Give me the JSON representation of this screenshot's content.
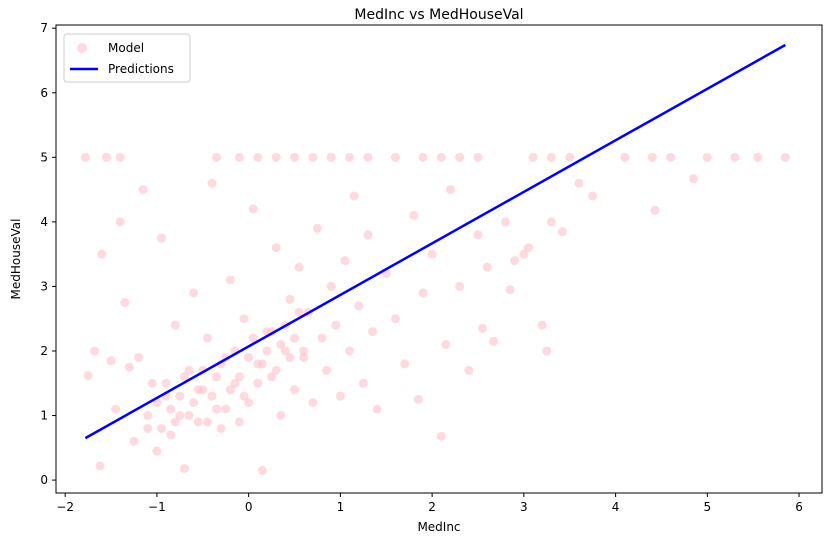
{
  "chart_data": {
    "type": "scatter",
    "title": "MedInc vs MedHouseVal",
    "xlabel": "MedInc",
    "ylabel": "MedHouseVal",
    "xlim": [
      -2.1,
      6.25
    ],
    "ylim": [
      -0.2,
      7.05
    ],
    "xticks": [
      -2,
      -1,
      0,
      1,
      2,
      3,
      4,
      5,
      6
    ],
    "yticks": [
      0,
      1,
      2,
      3,
      4,
      5,
      6,
      7
    ],
    "grid": false,
    "legend_position": "top-left",
    "colors": {
      "scatter": "#ffc0cb",
      "line": "#0000ff",
      "axis": "#000000"
    },
    "series": [
      {
        "name": "Model",
        "kind": "scatter",
        "points": [
          [
            -1.78,
            5.0
          ],
          [
            -1.55,
            5.0
          ],
          [
            -1.4,
            5.0
          ],
          [
            -0.35,
            5.0
          ],
          [
            -0.1,
            5.0
          ],
          [
            0.1,
            5.0
          ],
          [
            0.3,
            5.0
          ],
          [
            0.5,
            5.0
          ],
          [
            0.7,
            5.0
          ],
          [
            0.9,
            5.0
          ],
          [
            1.1,
            5.0
          ],
          [
            1.3,
            5.0
          ],
          [
            1.6,
            5.0
          ],
          [
            1.9,
            5.0
          ],
          [
            2.1,
            5.0
          ],
          [
            2.3,
            5.0
          ],
          [
            2.5,
            5.0
          ],
          [
            3.1,
            5.0
          ],
          [
            3.3,
            5.0
          ],
          [
            3.5,
            5.0
          ],
          [
            4.1,
            5.0
          ],
          [
            4.4,
            5.0
          ],
          [
            4.6,
            5.0
          ],
          [
            5.0,
            5.0
          ],
          [
            5.3,
            5.0
          ],
          [
            5.55,
            5.0
          ],
          [
            5.85,
            5.0
          ],
          [
            -1.75,
            1.62
          ],
          [
            -1.68,
            2.0
          ],
          [
            -1.62,
            0.22
          ],
          [
            -1.6,
            3.5
          ],
          [
            -1.5,
            1.85
          ],
          [
            -1.45,
            1.1
          ],
          [
            -1.4,
            4.0
          ],
          [
            -1.35,
            2.75
          ],
          [
            -1.3,
            1.75
          ],
          [
            -1.25,
            0.6
          ],
          [
            -1.2,
            1.9
          ],
          [
            -1.15,
            4.5
          ],
          [
            -1.1,
            0.8
          ],
          [
            -1.05,
            1.5
          ],
          [
            -1.0,
            0.45
          ],
          [
            -0.95,
            3.75
          ],
          [
            -0.9,
            1.3
          ],
          [
            -0.85,
            0.7
          ],
          [
            -0.8,
            2.4
          ],
          [
            -0.75,
            1.0
          ],
          [
            -0.7,
            0.18
          ],
          [
            -0.65,
            1.7
          ],
          [
            -0.6,
            2.9
          ],
          [
            -0.55,
            0.9
          ],
          [
            -0.5,
            1.4
          ],
          [
            -0.45,
            2.2
          ],
          [
            -0.4,
            4.6
          ],
          [
            -0.35,
            1.1
          ],
          [
            -0.3,
            0.8
          ],
          [
            -0.25,
            1.9
          ],
          [
            -0.2,
            3.1
          ],
          [
            -0.15,
            1.5
          ],
          [
            -0.1,
            0.9
          ],
          [
            -0.05,
            2.5
          ],
          [
            0.0,
            1.2
          ],
          [
            0.05,
            4.2
          ],
          [
            0.1,
            1.8
          ],
          [
            0.15,
            0.15
          ],
          [
            0.2,
            2.3
          ],
          [
            0.25,
            1.6
          ],
          [
            0.3,
            3.6
          ],
          [
            0.35,
            1.0
          ],
          [
            0.4,
            2.0
          ],
          [
            0.45,
            2.8
          ],
          [
            0.5,
            1.4
          ],
          [
            0.55,
            3.3
          ],
          [
            0.6,
            1.9
          ],
          [
            0.65,
            2.6
          ],
          [
            0.7,
            1.2
          ],
          [
            0.75,
            3.9
          ],
          [
            0.8,
            2.2
          ],
          [
            0.85,
            1.7
          ],
          [
            0.9,
            3.0
          ],
          [
            0.95,
            2.4
          ],
          [
            1.0,
            1.3
          ],
          [
            1.05,
            3.4
          ],
          [
            1.1,
            2.0
          ],
          [
            1.15,
            4.4
          ],
          [
            1.2,
            2.7
          ],
          [
            1.25,
            1.5
          ],
          [
            1.3,
            3.8
          ],
          [
            1.35,
            2.3
          ],
          [
            1.4,
            1.1
          ],
          [
            1.5,
            3.2
          ],
          [
            1.6,
            2.5
          ],
          [
            1.7,
            1.8
          ],
          [
            1.8,
            4.1
          ],
          [
            1.85,
            1.25
          ],
          [
            1.9,
            2.9
          ],
          [
            2.0,
            3.5
          ],
          [
            2.1,
            0.68
          ],
          [
            2.15,
            2.1
          ],
          [
            2.2,
            4.5
          ],
          [
            2.3,
            3.0
          ],
          [
            2.4,
            1.7
          ],
          [
            2.5,
            3.8
          ],
          [
            2.55,
            2.35
          ],
          [
            2.6,
            3.3
          ],
          [
            2.67,
            2.15
          ],
          [
            2.8,
            4.0
          ],
          [
            2.85,
            2.95
          ],
          [
            2.9,
            3.4
          ],
          [
            3.0,
            3.5
          ],
          [
            3.05,
            3.6
          ],
          [
            3.2,
            2.4
          ],
          [
            3.25,
            2.0
          ],
          [
            3.3,
            4.0
          ],
          [
            3.42,
            3.85
          ],
          [
            3.6,
            4.6
          ],
          [
            3.75,
            4.4
          ],
          [
            4.43,
            4.18
          ],
          [
            4.85,
            4.67
          ],
          [
            -1.1,
            1.0
          ],
          [
            -1.0,
            1.2
          ],
          [
            -0.95,
            0.8
          ],
          [
            -0.9,
            1.5
          ],
          [
            -0.85,
            1.1
          ],
          [
            -0.8,
            0.9
          ],
          [
            -0.75,
            1.3
          ],
          [
            -0.7,
            1.6
          ],
          [
            -0.65,
            1.0
          ],
          [
            -0.6,
            1.2
          ],
          [
            -0.55,
            1.4
          ],
          [
            -0.5,
            1.7
          ],
          [
            -0.45,
            0.9
          ],
          [
            -0.4,
            1.3
          ],
          [
            -0.35,
            1.6
          ],
          [
            -0.3,
            1.8
          ],
          [
            -0.25,
            1.1
          ],
          [
            -0.2,
            1.4
          ],
          [
            -0.15,
            2.0
          ],
          [
            -0.1,
            1.6
          ],
          [
            -0.05,
            1.3
          ],
          [
            0.0,
            1.9
          ],
          [
            0.05,
            2.2
          ],
          [
            0.1,
            1.5
          ],
          [
            0.15,
            1.8
          ],
          [
            0.2,
            2.0
          ],
          [
            0.25,
            2.3
          ],
          [
            0.3,
            1.7
          ],
          [
            0.35,
            2.1
          ],
          [
            0.4,
            2.4
          ],
          [
            0.45,
            1.9
          ],
          [
            0.5,
            2.2
          ],
          [
            0.55,
            2.6
          ],
          [
            0.6,
            2.0
          ]
        ]
      },
      {
        "name": "Predictions",
        "kind": "line",
        "points": [
          [
            -1.78,
            0.65
          ],
          [
            5.85,
            6.74
          ]
        ]
      }
    ]
  }
}
